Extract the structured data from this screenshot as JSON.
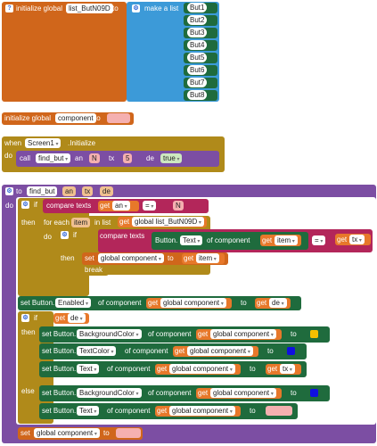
{
  "b1": {
    "init": "initialize global",
    "name": "list_ButN09D",
    "to": "to"
  },
  "list": {
    "make": "make a list",
    "items": [
      "But1",
      "But2",
      "But3",
      "But4",
      "But5",
      "But6",
      "But7",
      "But8"
    ]
  },
  "b2": {
    "init": "initialize global",
    "name": "component",
    "to": "to"
  },
  "b3": {
    "when": "when",
    "screen": "Screen1",
    "event": ".Initialize",
    "do": "do",
    "call": "call",
    "fn": "find_but",
    "an": "an",
    "tx": "tx",
    "de": "de",
    "anv": "N",
    "txv": "5",
    "dev": "true"
  },
  "b4": {
    "to": "to",
    "name": "find_but",
    "p1": "an",
    "p2": "tx",
    "p3": "de",
    "do": "do",
    "if": "if",
    "then": "then",
    "else": "else",
    "compare": "compare texts",
    "get": "get",
    "an": "an",
    "eq": "=",
    "nv": "N",
    "foreach": "for each",
    "item": "item",
    "inlist": "in list",
    "glist": "global list_ButN09D",
    "comptexts": "compare texts",
    "button": "Button.",
    "text": "Text",
    "ofcomp": "of component",
    "getitem": "item",
    "eq2": "=",
    "gettx": "tx",
    "set": "set",
    "gcomp": "global component",
    "to2": "to",
    "break": "break",
    "setbtn": "set Button.",
    "enabled": "Enabled",
    "of": "of component",
    "gcomp2": "global component",
    "de": "de",
    "bg": "BackgroundColor",
    "tc": "TextColor",
    "txt": "Text",
    "txv": "tx"
  }
}
